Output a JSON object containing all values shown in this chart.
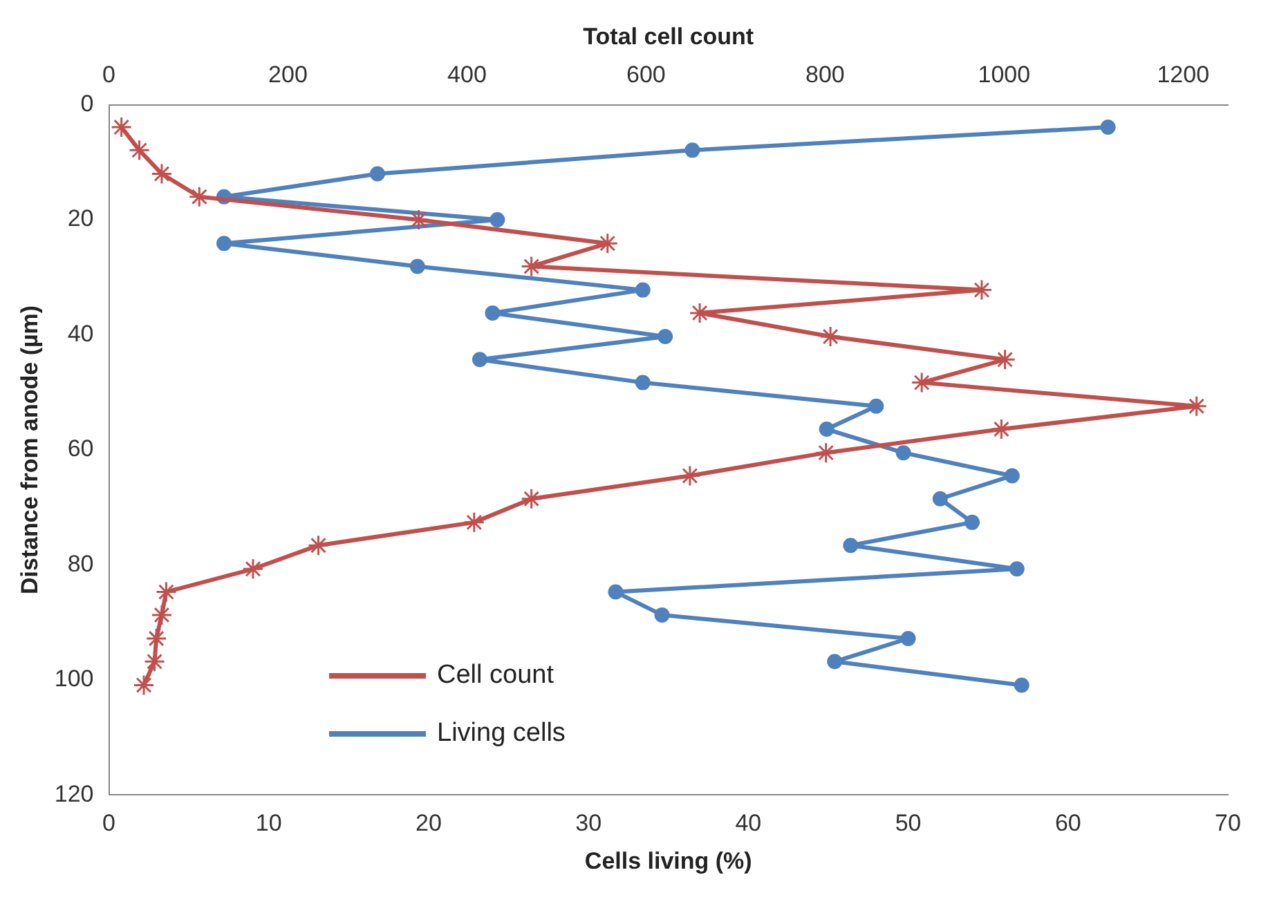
{
  "chart_data": {
    "type": "line",
    "xlabel": "Cells living (%)",
    "x2label": "Total cell count",
    "ylabel": "Distance from anode (µm)",
    "xlim": [
      0,
      70
    ],
    "xticks": [
      0,
      10,
      20,
      30,
      40,
      50,
      60,
      70
    ],
    "x2lim": [
      0,
      1250
    ],
    "x2ticks": [
      0,
      200,
      400,
      600,
      800,
      1000,
      1200
    ],
    "ylim": [
      120,
      0
    ],
    "yticks": [
      0,
      20,
      40,
      60,
      80,
      100,
      120
    ],
    "grid": false,
    "legend": "bottom left",
    "series": [
      {
        "name": "Cell count",
        "color": "#c0504d",
        "marker": "cross",
        "axis": "x2",
        "x": [
          14,
          34,
          59,
          101,
          346,
          557,
          472,
          975,
          660,
          806,
          1001,
          908,
          1215,
          997,
          801,
          649,
          472,
          408,
          234,
          161,
          64,
          59,
          53,
          51,
          39
        ],
        "values": [
          3.9,
          7.9,
          12,
          16,
          20,
          24.1,
          28.1,
          32.2,
          36.2,
          40.3,
          44.3,
          48.3,
          52.4,
          56.4,
          60.5,
          64.5,
          68.5,
          72.6,
          76.6,
          80.7,
          84.7,
          88.7,
          92.8,
          96.8,
          100.9
        ]
      },
      {
        "name": "Living cells",
        "color": "#4f81bd",
        "marker": "circle",
        "x": [
          62.5,
          36.5,
          16.8,
          7.2,
          24.3,
          7.2,
          19.3,
          33.4,
          24.0,
          34.8,
          23.2,
          33.4,
          48.0,
          44.9,
          49.7,
          56.5,
          52.0,
          54.0,
          46.4,
          56.8,
          31.7,
          34.6,
          50.0,
          45.4,
          57.1
        ],
        "values": [
          3.9,
          7.9,
          12,
          16,
          20,
          24.1,
          28.1,
          32.2,
          36.2,
          40.3,
          44.3,
          48.3,
          52.4,
          56.4,
          60.5,
          64.5,
          68.5,
          72.6,
          76.6,
          80.7,
          84.7,
          88.7,
          92.8,
          96.8,
          100.9
        ]
      }
    ]
  }
}
